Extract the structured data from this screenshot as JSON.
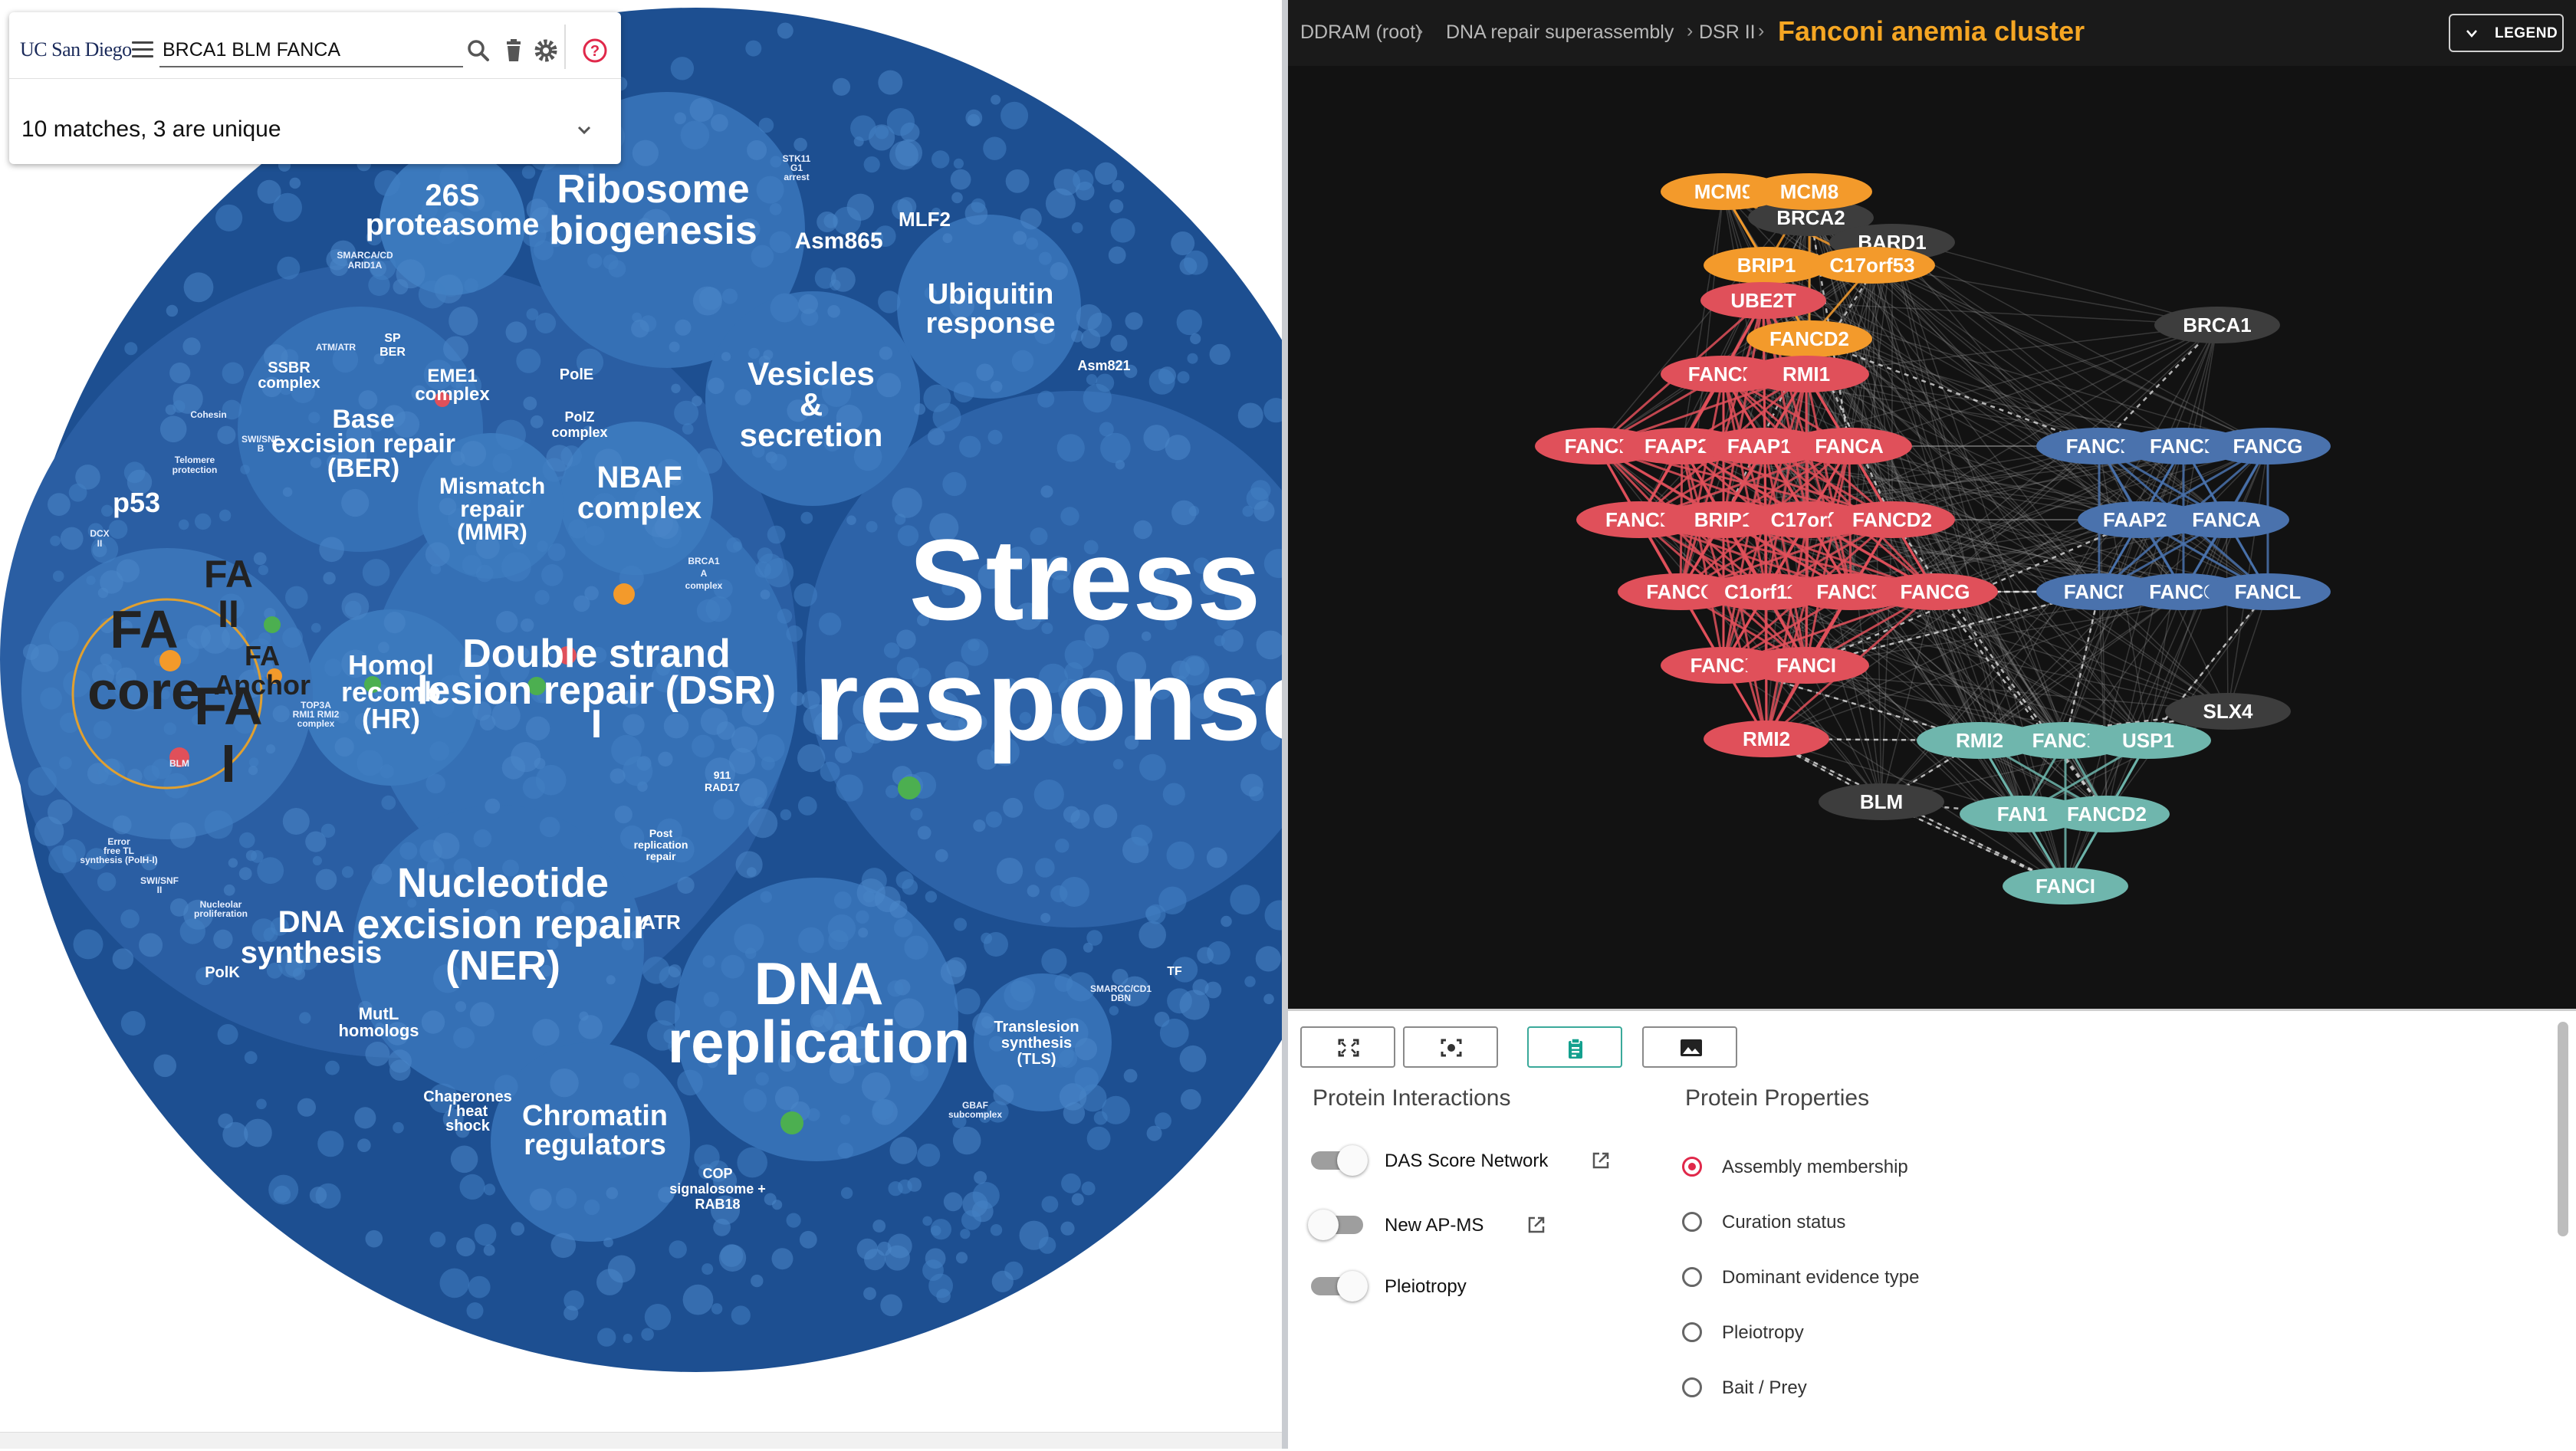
{
  "search": {
    "logo": "UC San Diego",
    "query": "BRCA1 BLM FANCA",
    "results_summary": "10 matches, 3 are unique"
  },
  "pack_labels": {
    "proteasome_26s": [
      "26S",
      "proteasome"
    ],
    "ribosome": [
      "Ribosome",
      "biogenesis"
    ],
    "asm865": "Asm865",
    "mlf2": "MLF2",
    "stk11": [
      "STK11",
      "G1",
      "arrest"
    ],
    "ubiquitin": [
      "Ubiquitin",
      "response"
    ],
    "vesicles": [
      "Vesicles",
      "&",
      "secretion"
    ],
    "asm821": "Asm821",
    "stress": [
      "Stress",
      "response"
    ],
    "smarca": [
      "SMARCA/CD",
      "ARID1A"
    ],
    "atm": "ATM/ATR",
    "sp_ber": [
      "SP",
      "BER"
    ],
    "ssbr": [
      "SSBR",
      "complex"
    ],
    "eme1": [
      "EME1",
      "complex"
    ],
    "pole": "PolE",
    "polz": [
      "PolZ",
      "complex"
    ],
    "cohesin": "Cohesin",
    "swisnf": [
      "SWI/SNF",
      "B"
    ],
    "telomere": [
      "Telomere",
      "protection"
    ],
    "base_excision": [
      "Base",
      "excision repair",
      "(BER)"
    ],
    "mismatch": [
      "Mismatch",
      "repair",
      "(MMR)"
    ],
    "nbaf": [
      "NBAF",
      "complex"
    ],
    "p53": "p53",
    "brca1a": [
      "BRCA1",
      "A",
      "complex"
    ],
    "fa_core": [
      "FA",
      "core"
    ],
    "fa_ii": [
      "FA",
      "II"
    ],
    "fa_anchor": [
      "FA",
      "Anchor"
    ],
    "fa_i": [
      "FA",
      "I"
    ],
    "homol": [
      "Homol",
      "recomb",
      "(HR)"
    ],
    "dsr": [
      "Double strand",
      "lesion repair (DSR)",
      "I"
    ],
    "blm": "BLM",
    "topo3a": [
      "TOP3A",
      "RMI1 RMI2",
      "complex"
    ],
    "rad17": [
      "911",
      "RAD17"
    ],
    "error_free": [
      "Error",
      "free TL",
      "synthesis (PolH-I)"
    ],
    "post_rep": [
      "Post",
      "replication",
      "repair"
    ],
    "nucleotide": [
      "Nucleotide",
      "excision repair",
      "(NER)"
    ],
    "atr": "ATR",
    "dna_synth": [
      "DNA",
      "synthesis"
    ],
    "nucleolar": [
      "Nucleolar",
      "proliferation"
    ],
    "polk": "PolK",
    "mutl": [
      "MutL",
      "homologs"
    ],
    "dna_rep": [
      "DNA",
      "replication"
    ],
    "smarcc": [
      "SMARCC/CD1",
      "DBN"
    ],
    "tf": "TF",
    "translesion": [
      "Translesion",
      "synthesis",
      "(TLS)"
    ],
    "gbaf": [
      "GBAF",
      "subcomplex"
    ],
    "chaperones": [
      "Chaperones",
      "/ heat",
      "shock"
    ],
    "chromatin": [
      "Chromatin",
      "regulators"
    ],
    "cop": [
      "COP",
      "signalosome +",
      "RAB18"
    ],
    "dcx": [
      "DCX",
      "II"
    ],
    "swisnf2": [
      "SWI/SNF",
      "II"
    ]
  },
  "breadcrumb": {
    "items": [
      "DDRAM (root)",
      "DNA repair superassembly",
      "DSR II"
    ],
    "separator": "›",
    "current": "Fanconi anemia cluster"
  },
  "legend_button": "LEGEND",
  "network": {
    "colors": {
      "red": "#e0505a",
      "orange": "#f39a2b",
      "blue": "#4a72ad",
      "teal": "#6fb6ad",
      "gray": "#3d3d3d"
    },
    "nodes": [
      {
        "id": "BRCA2",
        "group": "gray"
      },
      {
        "id": "BARD1",
        "group": "gray"
      },
      {
        "id": "BRCA1",
        "group": "gray"
      },
      {
        "id": "SLX4",
        "group": "gray"
      },
      {
        "id": "BLM",
        "group": "gray"
      },
      {
        "id": "MCM9",
        "group": "orange"
      },
      {
        "id": "MCM8",
        "group": "orange"
      },
      {
        "id": "BRIP1",
        "group": "orange"
      },
      {
        "id": "C17orf53",
        "group": "orange"
      },
      {
        "id": "FANCD2",
        "group": "orange"
      },
      {
        "id": "UBE2T",
        "group": "red"
      },
      {
        "id": "FANCM",
        "group": "red"
      },
      {
        "id": "RMI1",
        "group": "red"
      },
      {
        "id": "FANCF",
        "group": "red"
      },
      {
        "id": "FAAP24",
        "group": "red"
      },
      {
        "id": "FAAP10",
        "group": "red"
      },
      {
        "id": "FANCA",
        "group": "red"
      },
      {
        "id": "FANCE",
        "group": "red"
      },
      {
        "id": "BRIP1",
        "group": "red"
      },
      {
        "id": "C17orf5",
        "group": "red"
      },
      {
        "id": "FANCD2",
        "group": "red"
      },
      {
        "id": "FANCC",
        "group": "red"
      },
      {
        "id": "C1orf112",
        "group": "red"
      },
      {
        "id": "FANCB",
        "group": "red"
      },
      {
        "id": "FANCG",
        "group": "red"
      },
      {
        "id": "FANCL",
        "group": "red"
      },
      {
        "id": "FANCI",
        "group": "red"
      },
      {
        "id": "RMI2",
        "group": "red"
      },
      {
        "id": "FANCF",
        "group": "blue"
      },
      {
        "id": "FANCE",
        "group": "blue"
      },
      {
        "id": "FANCG",
        "group": "blue"
      },
      {
        "id": "FAAP20",
        "group": "blue"
      },
      {
        "id": "FANCA",
        "group": "blue"
      },
      {
        "id": "FANCM",
        "group": "blue"
      },
      {
        "id": "FANCC",
        "group": "blue"
      },
      {
        "id": "FANCL",
        "group": "blue"
      },
      {
        "id": "RMI2",
        "group": "teal"
      },
      {
        "id": "FANCL",
        "group": "teal"
      },
      {
        "id": "USP1",
        "group": "teal"
      },
      {
        "id": "FAN1",
        "group": "teal"
      },
      {
        "id": "FANCD2",
        "group": "teal"
      },
      {
        "id": "FANCI",
        "group": "teal"
      }
    ]
  },
  "toolbar": {
    "buttons": [
      "fit-view-icon",
      "focus-icon",
      "clipboard-icon",
      "image-icon"
    ],
    "active": "clipboard-icon"
  },
  "protein_interactions": {
    "title": "Protein Interactions",
    "toggles": [
      {
        "label": "DAS Score Network",
        "on": true,
        "external_link": true
      },
      {
        "label": "New AP-MS",
        "on": false,
        "external_link": true
      },
      {
        "label": "Pleiotropy",
        "on": true,
        "external_link": false
      }
    ]
  },
  "protein_properties": {
    "title": "Protein Properties",
    "options": [
      "Assembly membership",
      "Curation status",
      "Dominant evidence type",
      "Pleiotropy",
      "Bait / Prey"
    ],
    "selected": "Assembly membership"
  }
}
